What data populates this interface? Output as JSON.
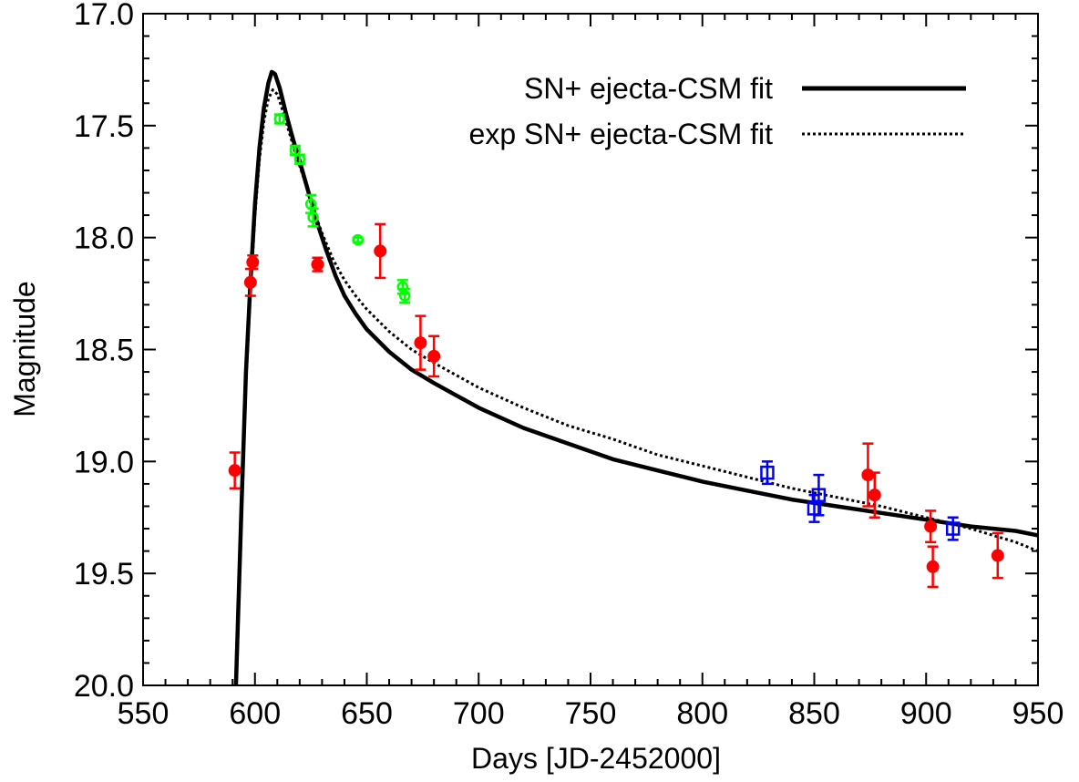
{
  "chart_data": {
    "type": "scatter",
    "xlabel": "Days [JD-2452000]",
    "ylabel": "Magnitude",
    "xlim": [
      550,
      950
    ],
    "ylim": [
      17.0,
      20.0
    ],
    "y_inverted": true,
    "grid": false,
    "legend_position": "top-right",
    "x_ticks": [
      550,
      600,
      650,
      700,
      750,
      800,
      850,
      900,
      950
    ],
    "x_tick_labels": [
      "550",
      "600",
      "650",
      "700",
      "750",
      "800",
      "850",
      "900",
      "950"
    ],
    "y_ticks": [
      17.0,
      17.5,
      18.0,
      18.5,
      19.0,
      19.5,
      20.0
    ],
    "y_tick_labels": [
      "17.0",
      "17.5",
      "18.0",
      "18.5",
      "19.0",
      "19.5",
      "20.0"
    ],
    "lines": [
      {
        "name": "SN+ ejecta-CSM fit",
        "style": "solid",
        "color": "#000000",
        "points": [
          [
            591.5,
            20.0
          ],
          [
            594,
            19.2
          ],
          [
            596,
            18.6
          ],
          [
            598,
            18.2
          ],
          [
            600,
            17.85
          ],
          [
            602,
            17.6
          ],
          [
            604,
            17.42
          ],
          [
            606,
            17.31
          ],
          [
            607.5,
            17.26
          ],
          [
            609,
            17.27
          ],
          [
            611,
            17.33
          ],
          [
            614,
            17.45
          ],
          [
            617,
            17.56
          ],
          [
            620,
            17.66
          ],
          [
            624,
            17.8
          ],
          [
            628,
            17.94
          ],
          [
            632,
            18.06
          ],
          [
            636,
            18.17
          ],
          [
            640,
            18.26
          ],
          [
            645,
            18.34
          ],
          [
            650,
            18.41
          ],
          [
            660,
            18.51
          ],
          [
            670,
            18.59
          ],
          [
            680,
            18.65
          ],
          [
            700,
            18.76
          ],
          [
            720,
            18.85
          ],
          [
            740,
            18.92
          ],
          [
            760,
            18.99
          ],
          [
            780,
            19.04
          ],
          [
            800,
            19.09
          ],
          [
            820,
            19.13
          ],
          [
            840,
            19.17
          ],
          [
            860,
            19.2
          ],
          [
            880,
            19.23
          ],
          [
            900,
            19.26
          ],
          [
            920,
            19.29
          ],
          [
            940,
            19.31
          ],
          [
            950,
            19.33
          ]
        ]
      },
      {
        "name": "exp SN+ ejecta-CSM fit",
        "style": "dotted",
        "color": "#000000",
        "points": [
          [
            591.5,
            20.0
          ],
          [
            594,
            19.2
          ],
          [
            596,
            18.65
          ],
          [
            598,
            18.25
          ],
          [
            600,
            17.9
          ],
          [
            602,
            17.65
          ],
          [
            604,
            17.48
          ],
          [
            606,
            17.38
          ],
          [
            608,
            17.34
          ],
          [
            610,
            17.36
          ],
          [
            612,
            17.42
          ],
          [
            615,
            17.52
          ],
          [
            618,
            17.62
          ],
          [
            622,
            17.74
          ],
          [
            626,
            17.87
          ],
          [
            630,
            17.98
          ],
          [
            635,
            18.1
          ],
          [
            640,
            18.19
          ],
          [
            645,
            18.26
          ],
          [
            650,
            18.32
          ],
          [
            660,
            18.42
          ],
          [
            670,
            18.5
          ],
          [
            680,
            18.56
          ],
          [
            700,
            18.67
          ],
          [
            720,
            18.76
          ],
          [
            740,
            18.84
          ],
          [
            760,
            18.9
          ],
          [
            780,
            18.97
          ],
          [
            800,
            19.02
          ],
          [
            820,
            19.07
          ],
          [
            840,
            19.12
          ],
          [
            860,
            19.16
          ],
          [
            880,
            19.2
          ],
          [
            900,
            19.25
          ],
          [
            920,
            19.3
          ],
          [
            940,
            19.36
          ],
          [
            950,
            19.4
          ]
        ]
      }
    ],
    "series": [
      {
        "marker": "filled-circle",
        "color": "#ff0000",
        "points": [
          {
            "x": 591,
            "y": 19.04,
            "err": 0.08
          },
          {
            "x": 598,
            "y": 18.2,
            "err": 0.06
          },
          {
            "x": 599,
            "y": 18.11,
            "err": 0.03
          },
          {
            "x": 628,
            "y": 18.12,
            "err": 0.03
          },
          {
            "x": 656,
            "y": 18.06,
            "err": 0.12
          },
          {
            "x": 674,
            "y": 18.47,
            "err": 0.12
          },
          {
            "x": 680,
            "y": 18.53,
            "err": 0.09
          },
          {
            "x": 874,
            "y": 19.06,
            "err": 0.14
          },
          {
            "x": 877,
            "y": 19.15,
            "err": 0.1
          },
          {
            "x": 902,
            "y": 19.29,
            "err": 0.07
          },
          {
            "x": 903,
            "y": 19.47,
            "err": 0.09
          },
          {
            "x": 932,
            "y": 19.42,
            "err": 0.1
          }
        ]
      },
      {
        "marker": "open-circle",
        "color": "#00ff00",
        "points": [
          {
            "x": 611,
            "y": 17.47,
            "err": 0.02
          },
          {
            "x": 618,
            "y": 17.61,
            "err": 0.02
          },
          {
            "x": 620,
            "y": 17.65,
            "err": 0.02
          },
          {
            "x": 625,
            "y": 17.85,
            "err": 0.04
          },
          {
            "x": 626,
            "y": 17.91,
            "err": 0.04
          },
          {
            "x": 646,
            "y": 18.01,
            "err": 0.01
          },
          {
            "x": 666,
            "y": 18.22,
            "err": 0.03
          },
          {
            "x": 667,
            "y": 18.26,
            "err": 0.03
          }
        ]
      },
      {
        "marker": "open-square",
        "color": "#0000ff",
        "points": [
          {
            "x": 829,
            "y": 19.05,
            "err": 0.05
          },
          {
            "x": 850,
            "y": 19.21,
            "err": 0.06
          },
          {
            "x": 852,
            "y": 19.15,
            "err": 0.09
          },
          {
            "x": 912,
            "y": 19.3,
            "err": 0.05
          }
        ]
      }
    ]
  }
}
